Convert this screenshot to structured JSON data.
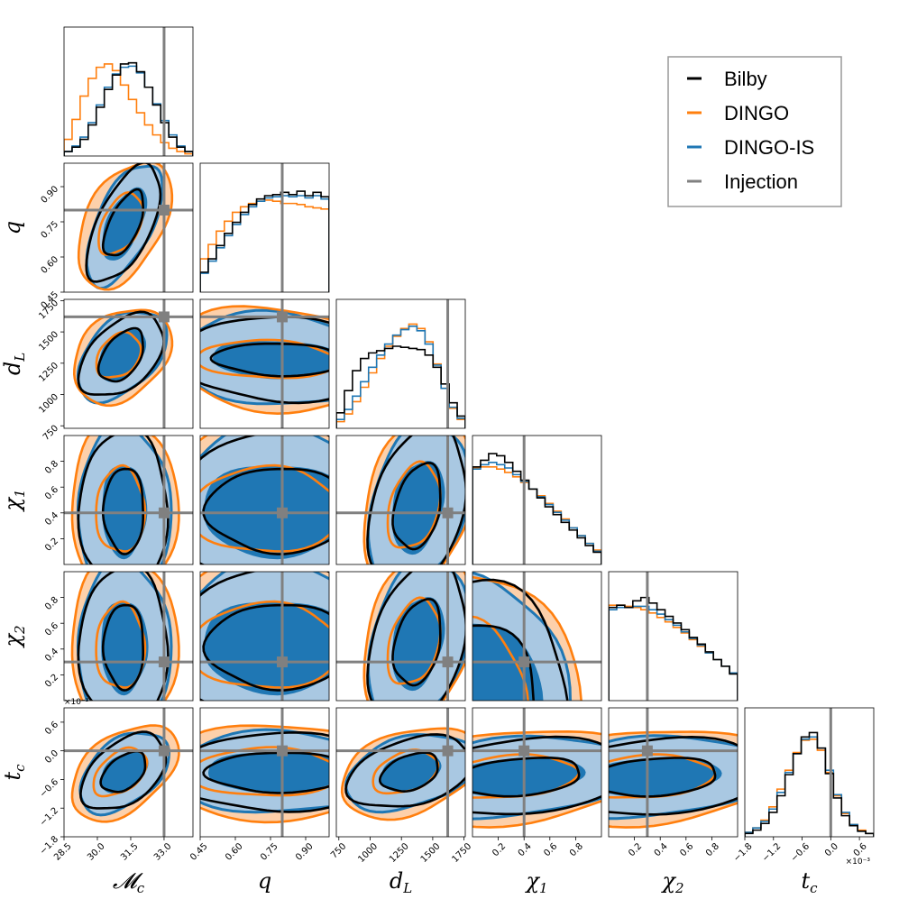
{
  "chart_data": {
    "type": "corner",
    "colors": {
      "Bilby": "#000000",
      "DINGO": "#ff7f0e",
      "DINGO-IS": "#1f77b4",
      "Injection": "#808080",
      "inner_fill": "#1f77b4",
      "outer_fill": "#a9c8e2",
      "dingo_fill": "#fdd0aa"
    },
    "legend": {
      "placement": "top-right",
      "entries": [
        "Bilby",
        "DINGO",
        "DINGO-IS",
        "Injection"
      ]
    },
    "parameters": [
      {
        "key": "mc",
        "label": "𝓜c",
        "range": [
          28.5,
          34.3
        ],
        "ticks": [
          28.5,
          30.0,
          31.5,
          33.0
        ],
        "tick_labels": [
          "28.5",
          "30.0",
          "31.5",
          "33.0"
        ],
        "injection": 33.0
      },
      {
        "key": "q",
        "label": "q",
        "range": [
          0.45,
          1.0
        ],
        "ticks": [
          0.45,
          0.6,
          0.75,
          0.9
        ],
        "tick_labels": [
          "0.45",
          "0.60",
          "0.75",
          "0.90"
        ],
        "injection": 0.8
      },
      {
        "key": "dL",
        "label": "dL",
        "range": [
          730,
          1760
        ],
        "ticks": [
          750,
          1000,
          1250,
          1500,
          1750
        ],
        "tick_labels": [
          "750",
          "1000",
          "1250",
          "1500",
          "1750"
        ],
        "injection": 1620
      },
      {
        "key": "chi1",
        "label": "χ1",
        "range": [
          0.0,
          1.0
        ],
        "ticks": [
          0.2,
          0.4,
          0.6,
          0.8
        ],
        "tick_labels": [
          "0.2",
          "0.4",
          "0.6",
          "0.8"
        ],
        "injection": 0.4
      },
      {
        "key": "chi2",
        "label": "χ2",
        "range": [
          0.0,
          1.0
        ],
        "ticks": [
          0.2,
          0.4,
          0.6,
          0.8
        ],
        "tick_labels": [
          "0.2",
          "0.4",
          "0.6",
          "0.8"
        ],
        "injection": 0.3
      },
      {
        "key": "tc",
        "label": "tc",
        "range": [
          -1.8,
          0.9
        ],
        "ticks": [
          -1.8,
          -1.2,
          -0.6,
          0.0,
          0.6
        ],
        "tick_labels": [
          "−1.8",
          "−1.2",
          "−0.6",
          "0.0",
          "0.6"
        ],
        "injection": 0.0,
        "offset_text": "×10⁻³"
      }
    ],
    "marginals": {
      "mc": {
        "bins": 16,
        "Bilby": [
          4,
          8,
          15,
          28,
          44,
          60,
          73,
          83,
          84,
          76,
          62,
          46,
          30,
          17,
          8,
          4
        ],
        "DINGO": [
          15,
          33,
          54,
          70,
          80,
          83,
          77,
          64,
          51,
          39,
          28,
          19,
          12,
          7,
          4,
          2
        ],
        "DINGO-IS": [
          4,
          9,
          17,
          30,
          46,
          62,
          74,
          80,
          81,
          75,
          62,
          47,
          32,
          19,
          9,
          4
        ]
      },
      "q": {
        "bins": 16,
        "Bilby": [
          18,
          30,
          42,
          53,
          63,
          72,
          79,
          84,
          87,
          88,
          90,
          88,
          91,
          87,
          90,
          86
        ],
        "DINGO": [
          30,
          43,
          55,
          64,
          72,
          77,
          80,
          82,
          83,
          82,
          80,
          80,
          79,
          77,
          76,
          75
        ],
        "DINGO-IS": [
          17,
          28,
          40,
          51,
          61,
          70,
          77,
          82,
          85,
          86,
          87,
          86,
          87,
          85,
          87,
          84
        ],
        "Bilby_fill": "#fdd0aa"
      },
      "dL": {
        "bins": 16,
        "Bilby": [
          14,
          34,
          52,
          63,
          68,
          70,
          72,
          74,
          73,
          72,
          71,
          66,
          55,
          40,
          23,
          11
        ],
        "DINGO": [
          6,
          13,
          24,
          37,
          50,
          63,
          74,
          83,
          90,
          94,
          90,
          78,
          58,
          36,
          18,
          8
        ],
        "DINGO-IS": [
          8,
          17,
          29,
          42,
          55,
          66,
          76,
          84,
          89,
          92,
          88,
          76,
          57,
          36,
          19,
          9
        ]
      },
      "chi1": {
        "bins": 16,
        "Bilby": [
          88,
          94,
          100,
          98,
          92,
          84,
          76,
          68,
          60,
          52,
          45,
          38,
          31,
          24,
          17,
          11
        ],
        "DINGO": [
          87,
          88,
          88,
          86,
          83,
          79,
          74,
          68,
          62,
          55,
          48,
          41,
          33,
          26,
          19,
          13
        ],
        "DINGO-IS": [
          86,
          90,
          92,
          90,
          87,
          81,
          75,
          68,
          61,
          54,
          47,
          40,
          33,
          26,
          19,
          12
        ]
      },
      "chi2": {
        "bins": 16,
        "Bilby": [
          84,
          86,
          84,
          90,
          93,
          88,
          82,
          76,
          70,
          64,
          57,
          51,
          44,
          37,
          31,
          24
        ],
        "DINGO": [
          86,
          86,
          85,
          84,
          82,
          79,
          75,
          71,
          66,
          61,
          55,
          49,
          43,
          37,
          31,
          25
        ],
        "DINGO-IS": [
          82,
          84,
          84,
          85,
          85,
          82,
          78,
          73,
          68,
          62,
          56,
          50,
          43,
          37,
          31,
          25
        ]
      },
      "tc": {
        "bins": 16,
        "Bilby": [
          3,
          6,
          12,
          22,
          37,
          56,
          75,
          90,
          94,
          80,
          57,
          35,
          19,
          10,
          5,
          3
        ],
        "DINGO": [
          4,
          8,
          15,
          27,
          43,
          60,
          76,
          87,
          88,
          78,
          58,
          37,
          21,
          11,
          6,
          3
        ],
        "DINGO-IS": [
          4,
          8,
          14,
          25,
          40,
          58,
          75,
          88,
          90,
          80,
          60,
          38,
          22,
          11,
          5,
          3
        ]
      }
    },
    "contours": {
      "q|mc": {
        "center": [
          31.2,
          0.74
        ],
        "blue90": [
          1.7,
          0.26,
          0.6
        ],
        "blue50": [
          0.95,
          0.15,
          0.6
        ],
        "dingo90": [
          2.1,
          0.27,
          0.45
        ],
        "dingo50": [
          1.0,
          0.13,
          0.45
        ],
        "bilby90": [
          1.65,
          0.25,
          0.6
        ],
        "bilby50": [
          0.9,
          0.14,
          0.6
        ]
      },
      "dL|mc": {
        "center": [
          31.1,
          1310
        ],
        "blue90": [
          2.0,
          360,
          0.45
        ],
        "blue50": [
          1.0,
          200,
          0.45
        ],
        "dingo90": [
          2.2,
          380,
          0.3
        ],
        "dingo50": [
          1.0,
          180,
          0.3
        ],
        "bilby90": [
          1.9,
          330,
          0.45
        ],
        "bilby50": [
          1.0,
          210,
          0.45
        ]
      },
      "dL|q": {
        "center": [
          0.78,
          1280
        ],
        "blue90": [
          0.42,
          370,
          -0.1
        ],
        "blue50": [
          0.28,
          140,
          -0.1
        ],
        "dingo90": [
          0.45,
          420,
          -0.15
        ],
        "dingo50": [
          0.3,
          150,
          -0.1
        ],
        "bilby90": [
          0.42,
          340,
          -0.1
        ],
        "bilby50": [
          0.27,
          130,
          -0.1
        ]
      },
      "chi1|mc": {
        "center": [
          31.2,
          0.42
        ],
        "blue90": [
          2.1,
          0.65,
          0.0
        ],
        "blue50": [
          0.95,
          0.35,
          0.0
        ],
        "dingo90": [
          2.4,
          0.7,
          0.0
        ],
        "dingo50": [
          1.1,
          0.33,
          0.0
        ],
        "bilby90": [
          2.0,
          0.62,
          0.0
        ],
        "bilby50": [
          0.9,
          0.33,
          0.0
        ]
      },
      "chi1|q": {
        "center": [
          0.78,
          0.42
        ],
        "blue90": [
          0.45,
          0.65,
          0.0
        ],
        "blue50": [
          0.32,
          0.35,
          0.0
        ],
        "dingo90": [
          0.48,
          0.68,
          0.0
        ],
        "dingo50": [
          0.32,
          0.33,
          0.0
        ],
        "bilby90": [
          0.44,
          0.62,
          0.0
        ],
        "bilby50": [
          0.3,
          0.33,
          0.0
        ]
      },
      "chi1|dL": {
        "center": [
          1380,
          0.45
        ],
        "blue90": [
          400,
          0.65,
          0.3
        ],
        "blue50": [
          200,
          0.35,
          0.3
        ],
        "dingo90": [
          440,
          0.7,
          0.3
        ],
        "dingo50": [
          210,
          0.33,
          0.3
        ],
        "bilby90": [
          390,
          0.62,
          0.3
        ],
        "bilby50": [
          190,
          0.33,
          0.3
        ]
      },
      "chi2|mc": {
        "center": [
          31.2,
          0.42
        ],
        "blue90": [
          2.1,
          0.65,
          0.0
        ],
        "blue50": [
          1.0,
          0.35,
          0.0
        ],
        "dingo90": [
          2.4,
          0.7,
          0.0
        ],
        "dingo50": [
          1.1,
          0.33,
          0.0
        ],
        "bilby90": [
          2.0,
          0.62,
          0.0
        ],
        "bilby50": [
          0.9,
          0.33,
          0.0
        ]
      },
      "chi2|q": {
        "center": [
          0.78,
          0.42
        ],
        "blue90": [
          0.45,
          0.65,
          0.0
        ],
        "blue50": [
          0.32,
          0.35,
          0.0
        ],
        "dingo90": [
          0.48,
          0.68,
          0.0
        ],
        "dingo50": [
          0.32,
          0.33,
          0.0
        ],
        "bilby90": [
          0.44,
          0.62,
          0.0
        ],
        "bilby50": [
          0.3,
          0.33,
          0.0
        ]
      },
      "chi2|dL": {
        "center": [
          1380,
          0.45
        ],
        "blue90": [
          400,
          0.65,
          0.3
        ],
        "blue50": [
          200,
          0.35,
          0.3
        ],
        "dingo90": [
          440,
          0.7,
          0.3
        ],
        "dingo50": [
          210,
          0.33,
          0.3
        ],
        "bilby90": [
          390,
          0.62,
          0.3
        ],
        "bilby50": [
          190,
          0.33,
          0.3
        ]
      },
      "chi2|chi1": {
        "center": [
          0.0,
          0.0
        ],
        "blue90": [
          0.75,
          0.95,
          0.0
        ],
        "blue50": [
          0.52,
          0.62,
          0.0
        ],
        "dingo90": [
          0.82,
          1.0,
          0.0
        ],
        "dingo50": [
          0.5,
          0.62,
          0.0
        ],
        "bilby90": [
          0.75,
          0.92,
          0.0
        ],
        "bilby50": [
          0.5,
          0.6,
          0.0
        ]
      },
      "tc|mc": {
        "center": [
          31.2,
          -0.45
        ],
        "blue90": [
          2.0,
          0.85,
          0.45
        ],
        "blue50": [
          1.0,
          0.42,
          0.45
        ],
        "dingo90": [
          2.4,
          1.0,
          0.45
        ],
        "dingo50": [
          1.2,
          0.5,
          0.45
        ],
        "bilby90": [
          1.9,
          0.8,
          0.45
        ],
        "bilby50": [
          1.0,
          0.42,
          0.45
        ]
      },
      "tc|q": {
        "center": [
          0.78,
          -0.45
        ],
        "blue90": [
          0.45,
          0.85,
          0.0
        ],
        "blue50": [
          0.3,
          0.4,
          0.0
        ],
        "dingo90": [
          0.5,
          1.0,
          0.0
        ],
        "dingo50": [
          0.32,
          0.5,
          0.0
        ],
        "bilby90": [
          0.44,
          0.82,
          0.0
        ],
        "bilby50": [
          0.3,
          0.42,
          0.0
        ]
      },
      "tc|dL": {
        "center": [
          1320,
          -0.45
        ],
        "blue90": [
          520,
          0.8,
          0.35
        ],
        "blue50": [
          230,
          0.38,
          0.35
        ],
        "dingo90": [
          560,
          0.95,
          0.35
        ],
        "dingo50": [
          260,
          0.45,
          0.35
        ],
        "bilby90": [
          500,
          0.75,
          0.35
        ],
        "bilby50": [
          230,
          0.4,
          0.35
        ]
      },
      "tc|chi1": {
        "center": [
          0.35,
          -0.55
        ],
        "blue90": [
          0.9,
          0.85,
          0.25
        ],
        "blue50": [
          0.5,
          0.38,
          0.25
        ],
        "dingo90": [
          1.0,
          1.0,
          0.25
        ],
        "dingo50": [
          0.55,
          0.45,
          0.25
        ],
        "bilby90": [
          0.9,
          0.8,
          0.25
        ],
        "bilby50": [
          0.5,
          0.4,
          0.25
        ]
      },
      "tc|chi2": {
        "center": [
          0.35,
          -0.55
        ],
        "blue90": [
          0.9,
          0.85,
          0.2
        ],
        "blue50": [
          0.5,
          0.38,
          0.2
        ],
        "dingo90": [
          1.0,
          1.0,
          0.2
        ],
        "dingo50": [
          0.55,
          0.45,
          0.2
        ],
        "bilby90": [
          0.9,
          0.8,
          0.2
        ],
        "bilby50": [
          0.5,
          0.4,
          0.2
        ]
      }
    }
  }
}
